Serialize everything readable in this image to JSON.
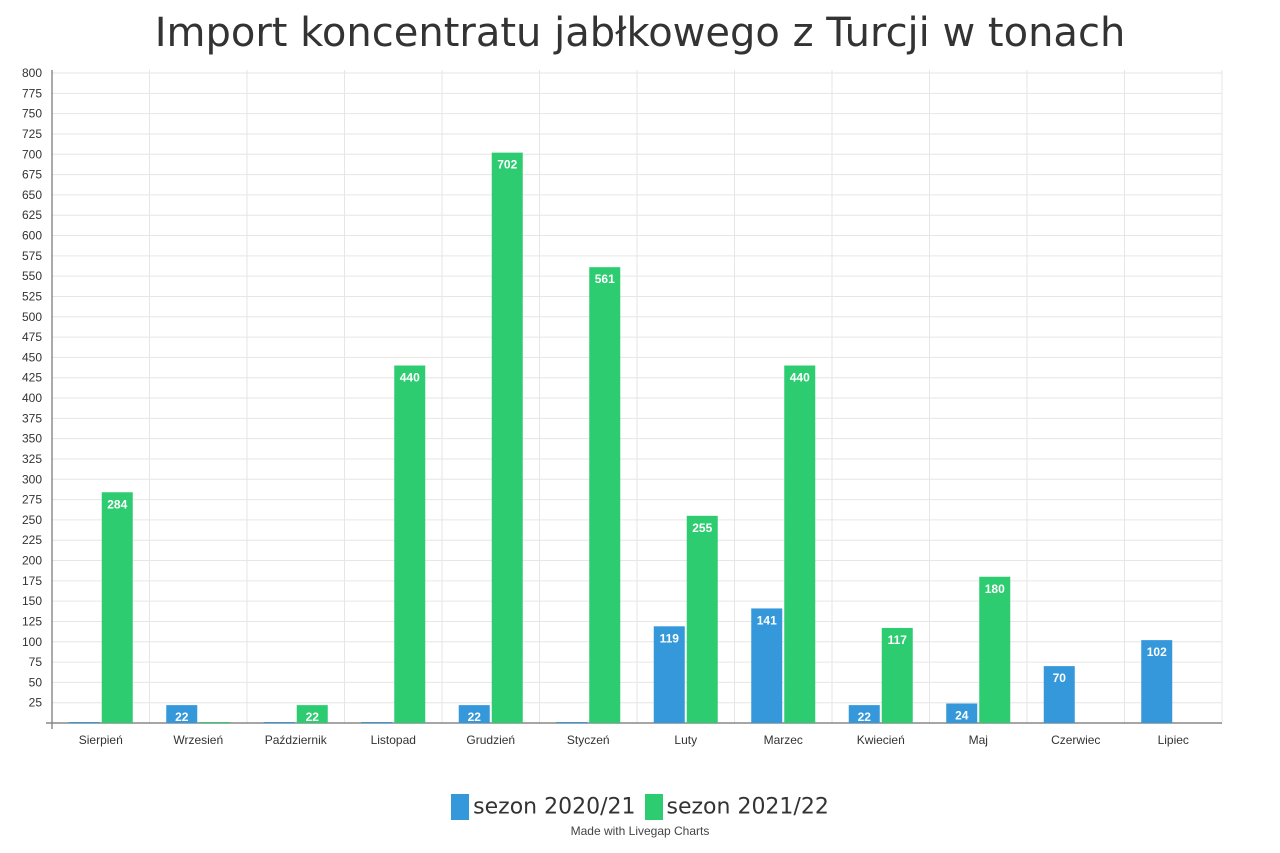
{
  "chart_data": {
    "type": "bar",
    "title": "Import koncentratu jabłkowego z Turcji w tonach",
    "categories": [
      "Sierpień",
      "Wrzesień",
      "Październik",
      "Listopad",
      "Grudzień",
      "Styczeń",
      "Luty",
      "Marzec",
      "Kwiecień",
      "Maj",
      "Czerwiec",
      "Lipiec"
    ],
    "series": [
      {
        "name": "sezon 2020/21",
        "color": "#3498db",
        "values": [
          0,
          22,
          0,
          0,
          22,
          0,
          119,
          141,
          22,
          24,
          70,
          102
        ]
      },
      {
        "name": "sezon 2021/22",
        "color": "#2ecc71",
        "values": [
          284,
          0,
          22,
          440,
          702,
          561,
          255,
          440,
          117,
          180,
          null,
          null
        ]
      }
    ],
    "ylim": [
      0,
      800
    ],
    "ytick_step": 25,
    "grid": true,
    "legend_position": "bottom",
    "xlabel": "",
    "ylabel": ""
  },
  "credit": "Made with Livegap Charts"
}
